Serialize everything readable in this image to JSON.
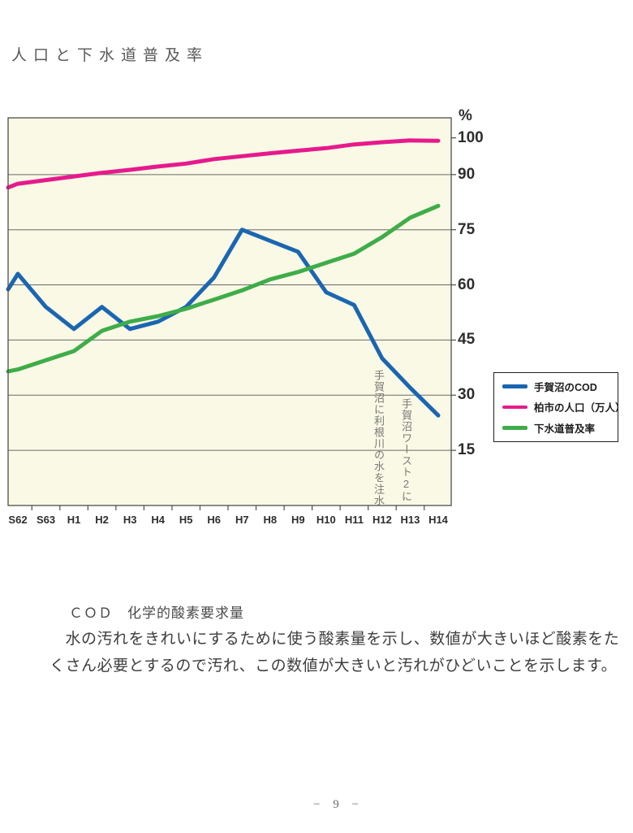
{
  "page": {
    "title": "人口と下水道普及率",
    "page_number": "− 9 −"
  },
  "chart_data": {
    "type": "line",
    "background": "#FAF9E5",
    "grid_color": "#6a6a6a",
    "border_color": "#4d4d4d",
    "y_axis_side": "right",
    "ylabel": "%",
    "ylim": [
      0,
      105.5
    ],
    "y_ticks": [
      15,
      30,
      45,
      60,
      75,
      90,
      100
    ],
    "y_gridlines": [
      15,
      30,
      45,
      60,
      75,
      90
    ],
    "categories": [
      "S62",
      "S63",
      "H1",
      "H2",
      "H3",
      "H4",
      "H5",
      "H6",
      "H7",
      "H8",
      "H9",
      "H10",
      "H11",
      "H12",
      "H13",
      "H14"
    ],
    "series": [
      {
        "key": "teganuma-cod",
        "name": "手賀沼のCOD",
        "color": "#1A66B1",
        "edge_start": 58.8,
        "values": [
          63,
          54,
          48,
          54,
          48,
          50,
          54,
          62,
          75,
          72,
          69,
          58,
          54.5,
          40,
          32,
          24.5
        ]
      },
      {
        "key": "kashiwa-population",
        "name": "柏市の人口（万人）",
        "color": "#E61A8C",
        "edge_start": 86.5,
        "values": [
          87.5,
          88.5,
          89.5,
          90.5,
          91.3,
          92.2,
          93,
          94.2,
          95,
          95.8,
          96.5,
          97.2,
          98.2,
          98.8,
          99.3,
          99.2
        ]
      },
      {
        "key": "sewerage-rate",
        "name": "下水道普及率",
        "color": "#3EAD49",
        "edge_start": 36.5,
        "values": [
          37,
          39.5,
          42,
          47.5,
          50,
          51.5,
          53.5,
          56,
          58.5,
          61.5,
          63.5,
          66,
          68.5,
          73,
          78.3,
          81.5
        ]
      }
    ],
    "annotations": [
      {
        "text": "手賀沼に利根川の水を注水",
        "x": 469,
        "y": 455
      },
      {
        "text": "手賀沼ワースト2に",
        "x": 503,
        "y": 490
      }
    ],
    "legend_position": "right-middle"
  },
  "notes": {
    "heading": "ＣＯＤ　化学的酸素要求量",
    "line1": "　水の汚れをきれいにするために使う酸素量を示し、数値が大きいほど酸素をた",
    "line2": "くさん必要とするので汚れ、この数値が大きいと汚れがひどいことを示します。"
  }
}
